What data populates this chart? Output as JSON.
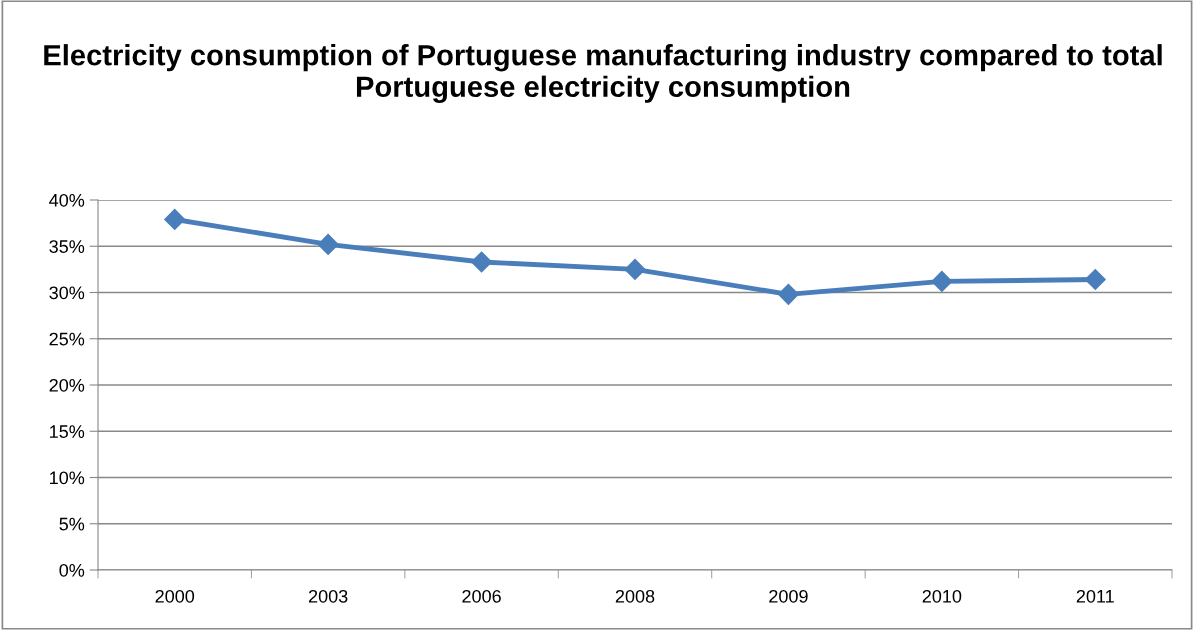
{
  "chart_data": {
    "type": "line",
    "title": "Electricity consumption of Portuguese manufacturing industry compared to total Portuguese electricity consumption",
    "categories": [
      "2000",
      "2003",
      "2006",
      "2008",
      "2009",
      "2010",
      "2011"
    ],
    "series": [
      {
        "color": "#4a7ebb",
        "values": [
          37.9,
          35.2,
          33.3,
          32.5,
          29.8,
          31.2,
          31.4
        ]
      }
    ],
    "ylim": [
      0,
      40
    ],
    "yticks": [
      {
        "value": 0,
        "label": "0%"
      },
      {
        "value": 5,
        "label": "5%"
      },
      {
        "value": 10,
        "label": "10%"
      },
      {
        "value": 15,
        "label": "15%"
      },
      {
        "value": 20,
        "label": "20%"
      },
      {
        "value": 25,
        "label": "25%"
      },
      {
        "value": 30,
        "label": "30%"
      },
      {
        "value": 35,
        "label": "35%"
      },
      {
        "value": 40,
        "label": "40%"
      }
    ],
    "grid": "y",
    "marker": "diamond",
    "line_style": "solid"
  }
}
